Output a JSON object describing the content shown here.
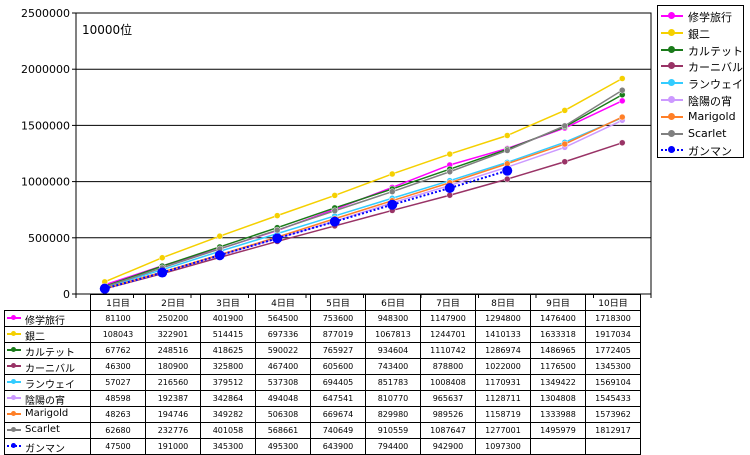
{
  "chart_data": {
    "type": "line",
    "unit_label": "10000位",
    "ylim": [
      0,
      2500000
    ],
    "yticks": [
      "0",
      "500000",
      "1000000",
      "1500000",
      "2000000",
      "2500000"
    ],
    "categories": [
      "1日目",
      "2日目",
      "3日目",
      "4日目",
      "5日目",
      "6日目",
      "7日目",
      "8日目",
      "9日目",
      "10日目"
    ],
    "grid": true,
    "legend_position": "right",
    "series": [
      {
        "name": "修学旅行",
        "color": "#ff00ff",
        "values": [
          81100,
          250200,
          401900,
          564500,
          753600,
          948300,
          1147900,
          1294800,
          1476400,
          1718300
        ]
      },
      {
        "name": "銀二",
        "color": "#f5d000",
        "values": [
          108043,
          322901,
          514415,
          697336,
          877019,
          1067813,
          1244701,
          1410133,
          1633318,
          1917034
        ]
      },
      {
        "name": "カルテット",
        "color": "#1a7a1a",
        "values": [
          67762,
          248516,
          418625,
          590022,
          765927,
          934604,
          1110742,
          1286974,
          1486965,
          1772405
        ]
      },
      {
        "name": "カーニバル",
        "color": "#993366",
        "values": [
          46300,
          180900,
          325800,
          467400,
          605600,
          743400,
          878800,
          1022000,
          1176500,
          1345300
        ]
      },
      {
        "name": "ランウェイ",
        "color": "#33ccff",
        "values": [
          57027,
          216560,
          379512,
          537308,
          694405,
          851783,
          1008408,
          1170931,
          1349422,
          1569104
        ]
      },
      {
        "name": "陰陽の宵",
        "color": "#cc99ff",
        "values": [
          48598,
          192387,
          342864,
          494048,
          647541,
          810770,
          965637,
          1128711,
          1304808,
          1545433
        ]
      },
      {
        "name": "Marigold",
        "color": "#ff7f27",
        "values": [
          48263,
          194746,
          349282,
          506308,
          669674,
          829980,
          989526,
          1158719,
          1333988,
          1573962
        ]
      },
      {
        "name": "Scarlet",
        "color": "#808080",
        "values": [
          62680,
          232776,
          401058,
          568661,
          740649,
          910559,
          1087647,
          1277001,
          1495979,
          1812917
        ]
      },
      {
        "name": "ガンマン",
        "color": "#0000ff",
        "dashed": true,
        "values": [
          47500,
          191000,
          345300,
          495300,
          643900,
          794400,
          942900,
          1097300,
          null,
          null
        ]
      }
    ]
  }
}
